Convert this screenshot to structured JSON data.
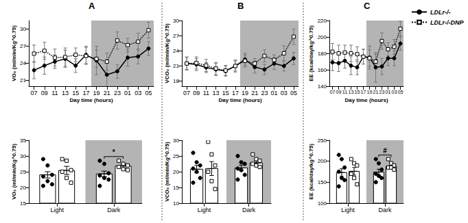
{
  "chart_data": [
    {
      "type": "line",
      "panel": "A",
      "ylabel": "VO₂ (ml/min/Kg^0.75)",
      "xlabel": "Day time (hours)",
      "categories": [
        "07",
        "09",
        "11",
        "13",
        "15",
        "17",
        "19",
        "21",
        "23",
        "01",
        "03",
        "05"
      ],
      "dark_period": [
        "19",
        "05"
      ],
      "ylim": [
        20,
        31.5
      ],
      "yticks": [
        21,
        24,
        27,
        30
      ],
      "grid": false,
      "series": [
        {
          "name": "LDLr-/-",
          "color": "#000000",
          "marker": "circle",
          "line_style": "solid",
          "values": [
            22.8,
            23.6,
            24.3,
            24.8,
            23.6,
            25.5,
            24.5,
            22.0,
            22.6,
            25.0,
            25.2,
            26.6
          ],
          "errors": [
            1.5,
            1.5,
            1.2,
            1.5,
            1.2,
            1.5,
            2.5,
            2.5,
            1.2,
            1.5,
            1.3,
            1.2
          ]
        },
        {
          "name": "LDLr-/-DNP",
          "color": "#000000",
          "marker": "open-square",
          "line_style": "dotted",
          "values": [
            25.7,
            26.2,
            25.0,
            25.1,
            25.5,
            25.3,
            24.8,
            24.3,
            28.0,
            27.2,
            27.8,
            29.8
          ],
          "errors": [
            1.5,
            1.5,
            1.5,
            1.6,
            1.2,
            1.5,
            1.5,
            1.5,
            1.5,
            1.2,
            1.5,
            1.4
          ]
        }
      ]
    },
    {
      "type": "line",
      "panel": "B",
      "ylabel": "VCO₂ (ml/min/Kg^0.75)",
      "xlabel": "Day time (hours)",
      "categories": [
        "07",
        "09",
        "11",
        "13",
        "15",
        "17",
        "19",
        "21",
        "23",
        "01",
        "03",
        "05"
      ],
      "dark_period": [
        "19",
        "05"
      ],
      "ylim": [
        17,
        30
      ],
      "yticks": [
        18,
        21,
        24,
        27,
        30
      ],
      "grid": false,
      "series": [
        {
          "name": "LDLr-/-",
          "color": "#000000",
          "marker": "circle",
          "line_style": "solid",
          "values": [
            21.5,
            21.3,
            20.7,
            20.3,
            20.0,
            21.0,
            22.3,
            20.8,
            20.3,
            21.5,
            21.0,
            22.5
          ],
          "errors": [
            1.2,
            1.2,
            1.0,
            1.2,
            1.0,
            1.0,
            1.2,
            1.2,
            1.0,
            1.2,
            1.0,
            1.2
          ]
        },
        {
          "name": "LDLr-/-DNP",
          "color": "#000000",
          "marker": "open-square",
          "line_style": "dotted",
          "values": [
            21.5,
            21.6,
            21.1,
            20.5,
            20.1,
            21.0,
            22.0,
            21.5,
            23.0,
            22.2,
            23.5,
            26.8
          ],
          "errors": [
            1.3,
            1.2,
            1.2,
            1.2,
            1.0,
            1.2,
            1.2,
            1.0,
            1.2,
            1.0,
            1.5,
            1.5
          ]
        }
      ]
    },
    {
      "type": "line",
      "panel": "C",
      "ylabel": "EE (kcal/day/kg^0.75)",
      "xlabel": "Day time (hours)",
      "categories": [
        "07",
        "09",
        "11",
        "13",
        "15",
        "17",
        "19",
        "21",
        "23",
        "01",
        "03",
        "05"
      ],
      "dark_period": [
        "19",
        "05"
      ],
      "ylim": [
        140,
        220
      ],
      "yticks": [
        140,
        160,
        180,
        200,
        220
      ],
      "grid": false,
      "legend": "top right",
      "series": [
        {
          "name": "LDLr-/-",
          "color": "#000000",
          "marker": "circle",
          "line_style": "solid",
          "values": [
            169,
            168,
            171,
            165,
            163,
            176,
            175,
            163,
            164,
            174,
            174,
            192
          ],
          "errors": [
            10,
            10,
            9,
            11,
            9,
            9,
            14,
            18,
            10,
            9,
            9,
            8
          ]
        },
        {
          "name": "LDLr-/-DNP",
          "color": "#000000",
          "marker": "open-square",
          "line_style": "dotted",
          "values": [
            182,
            180,
            181,
            180,
            179,
            176,
            174,
            170,
            195,
            185,
            188,
            210
          ],
          "errors": [
            10,
            10,
            9,
            10,
            9,
            9,
            10,
            9,
            10,
            8,
            9,
            9
          ]
        }
      ]
    },
    {
      "type": "bar",
      "ylabel": "VO₂ (ml/min/Kg^0.75)",
      "categories": [
        "Light",
        "Dark"
      ],
      "dark_period": [
        "Dark",
        "Dark"
      ],
      "ylim": [
        15,
        35
      ],
      "yticks": [
        15,
        20,
        25,
        30,
        35
      ],
      "grid": false,
      "annotations": [
        {
          "category": "Dark",
          "text": "*"
        }
      ],
      "series": [
        {
          "name": "LDLr-/-",
          "color": "#000000",
          "marker": "circle",
          "values": [
            24.0,
            24.3
          ],
          "errors": [
            1.0,
            0.9
          ],
          "points": [
            [
              29,
              27,
              24,
              23.5,
              22,
              21,
              20.5
            ],
            [
              28.5,
              27.5,
              24.5,
              23.8,
              23,
              22.5,
              20.5
            ]
          ]
        },
        {
          "name": "LDLr-/-DNP",
          "color": "#000000",
          "marker": "open-square",
          "values": [
            25.4,
            26.8
          ],
          "errors": [
            1.3,
            0.6
          ],
          "points": [
            [
              29,
              28.5,
              25.5,
              25,
              23,
              21.5
            ],
            [
              28.5,
              27.5,
              27,
              26.5,
              25.8,
              25.5
            ]
          ]
        }
      ]
    },
    {
      "type": "bar",
      "ylabel": "VCO₂ (ml/min/Kg^0.75)",
      "categories": [
        "Light",
        "Dark"
      ],
      "dark_period": [
        "Dark",
        "Dark"
      ],
      "ylim": [
        10,
        30
      ],
      "yticks": [
        10,
        15,
        20,
        25,
        30
      ],
      "grid": false,
      "series": [
        {
          "name": "LDLr-/-",
          "color": "#000000",
          "marker": "circle",
          "values": [
            20.8,
            21.2
          ],
          "errors": [
            1.2,
            0.9
          ],
          "points": [
            [
              26,
              23,
              22,
              21,
              20,
              18,
              16.5
            ],
            [
              25,
              23,
              22.5,
              21,
              20.5,
              19,
              17.5
            ]
          ]
        },
        {
          "name": "LDLr-/-DNP",
          "color": "#000000",
          "marker": "open-square",
          "values": [
            21.0,
            22.8
          ],
          "errors": [
            2.2,
            0.7
          ],
          "points": [
            [
              29.5,
              25.5,
              22,
              20,
              17,
              14.5
            ],
            [
              25.5,
              24,
              23.5,
              22.5,
              22,
              21.5
            ]
          ]
        }
      ]
    },
    {
      "type": "bar",
      "ylabel": "EE (kcal/day/kg^0.75)",
      "categories": [
        "Light",
        "Dark"
      ],
      "dark_period": [
        "Dark",
        "Dark"
      ],
      "ylim": [
        100,
        250
      ],
      "yticks": [
        100,
        150,
        200,
        250
      ],
      "grid": false,
      "annotations": [
        {
          "category": "Dark",
          "text": "#"
        }
      ],
      "series": [
        {
          "name": "LDLr-/-",
          "color": "#000000",
          "marker": "circle",
          "values": [
            173,
            174
          ],
          "errors": [
            9,
            7
          ],
          "points": [
            [
              215,
              205,
              185,
              175,
              160,
              155,
              140
            ],
            [
              205,
              195,
              180,
              170,
              165,
              160,
              150
            ]
          ]
        },
        {
          "name": "LDLr-/-DNP",
          "color": "#000000",
          "marker": "open-square",
          "values": [
            176,
            188
          ],
          "errors": [
            9,
            4
          ],
          "points": [
            [
              205,
              195,
              190,
              170,
              160,
              145
            ],
            [
              205,
              195,
              190,
              185,
              185,
              180
            ]
          ]
        }
      ]
    }
  ]
}
